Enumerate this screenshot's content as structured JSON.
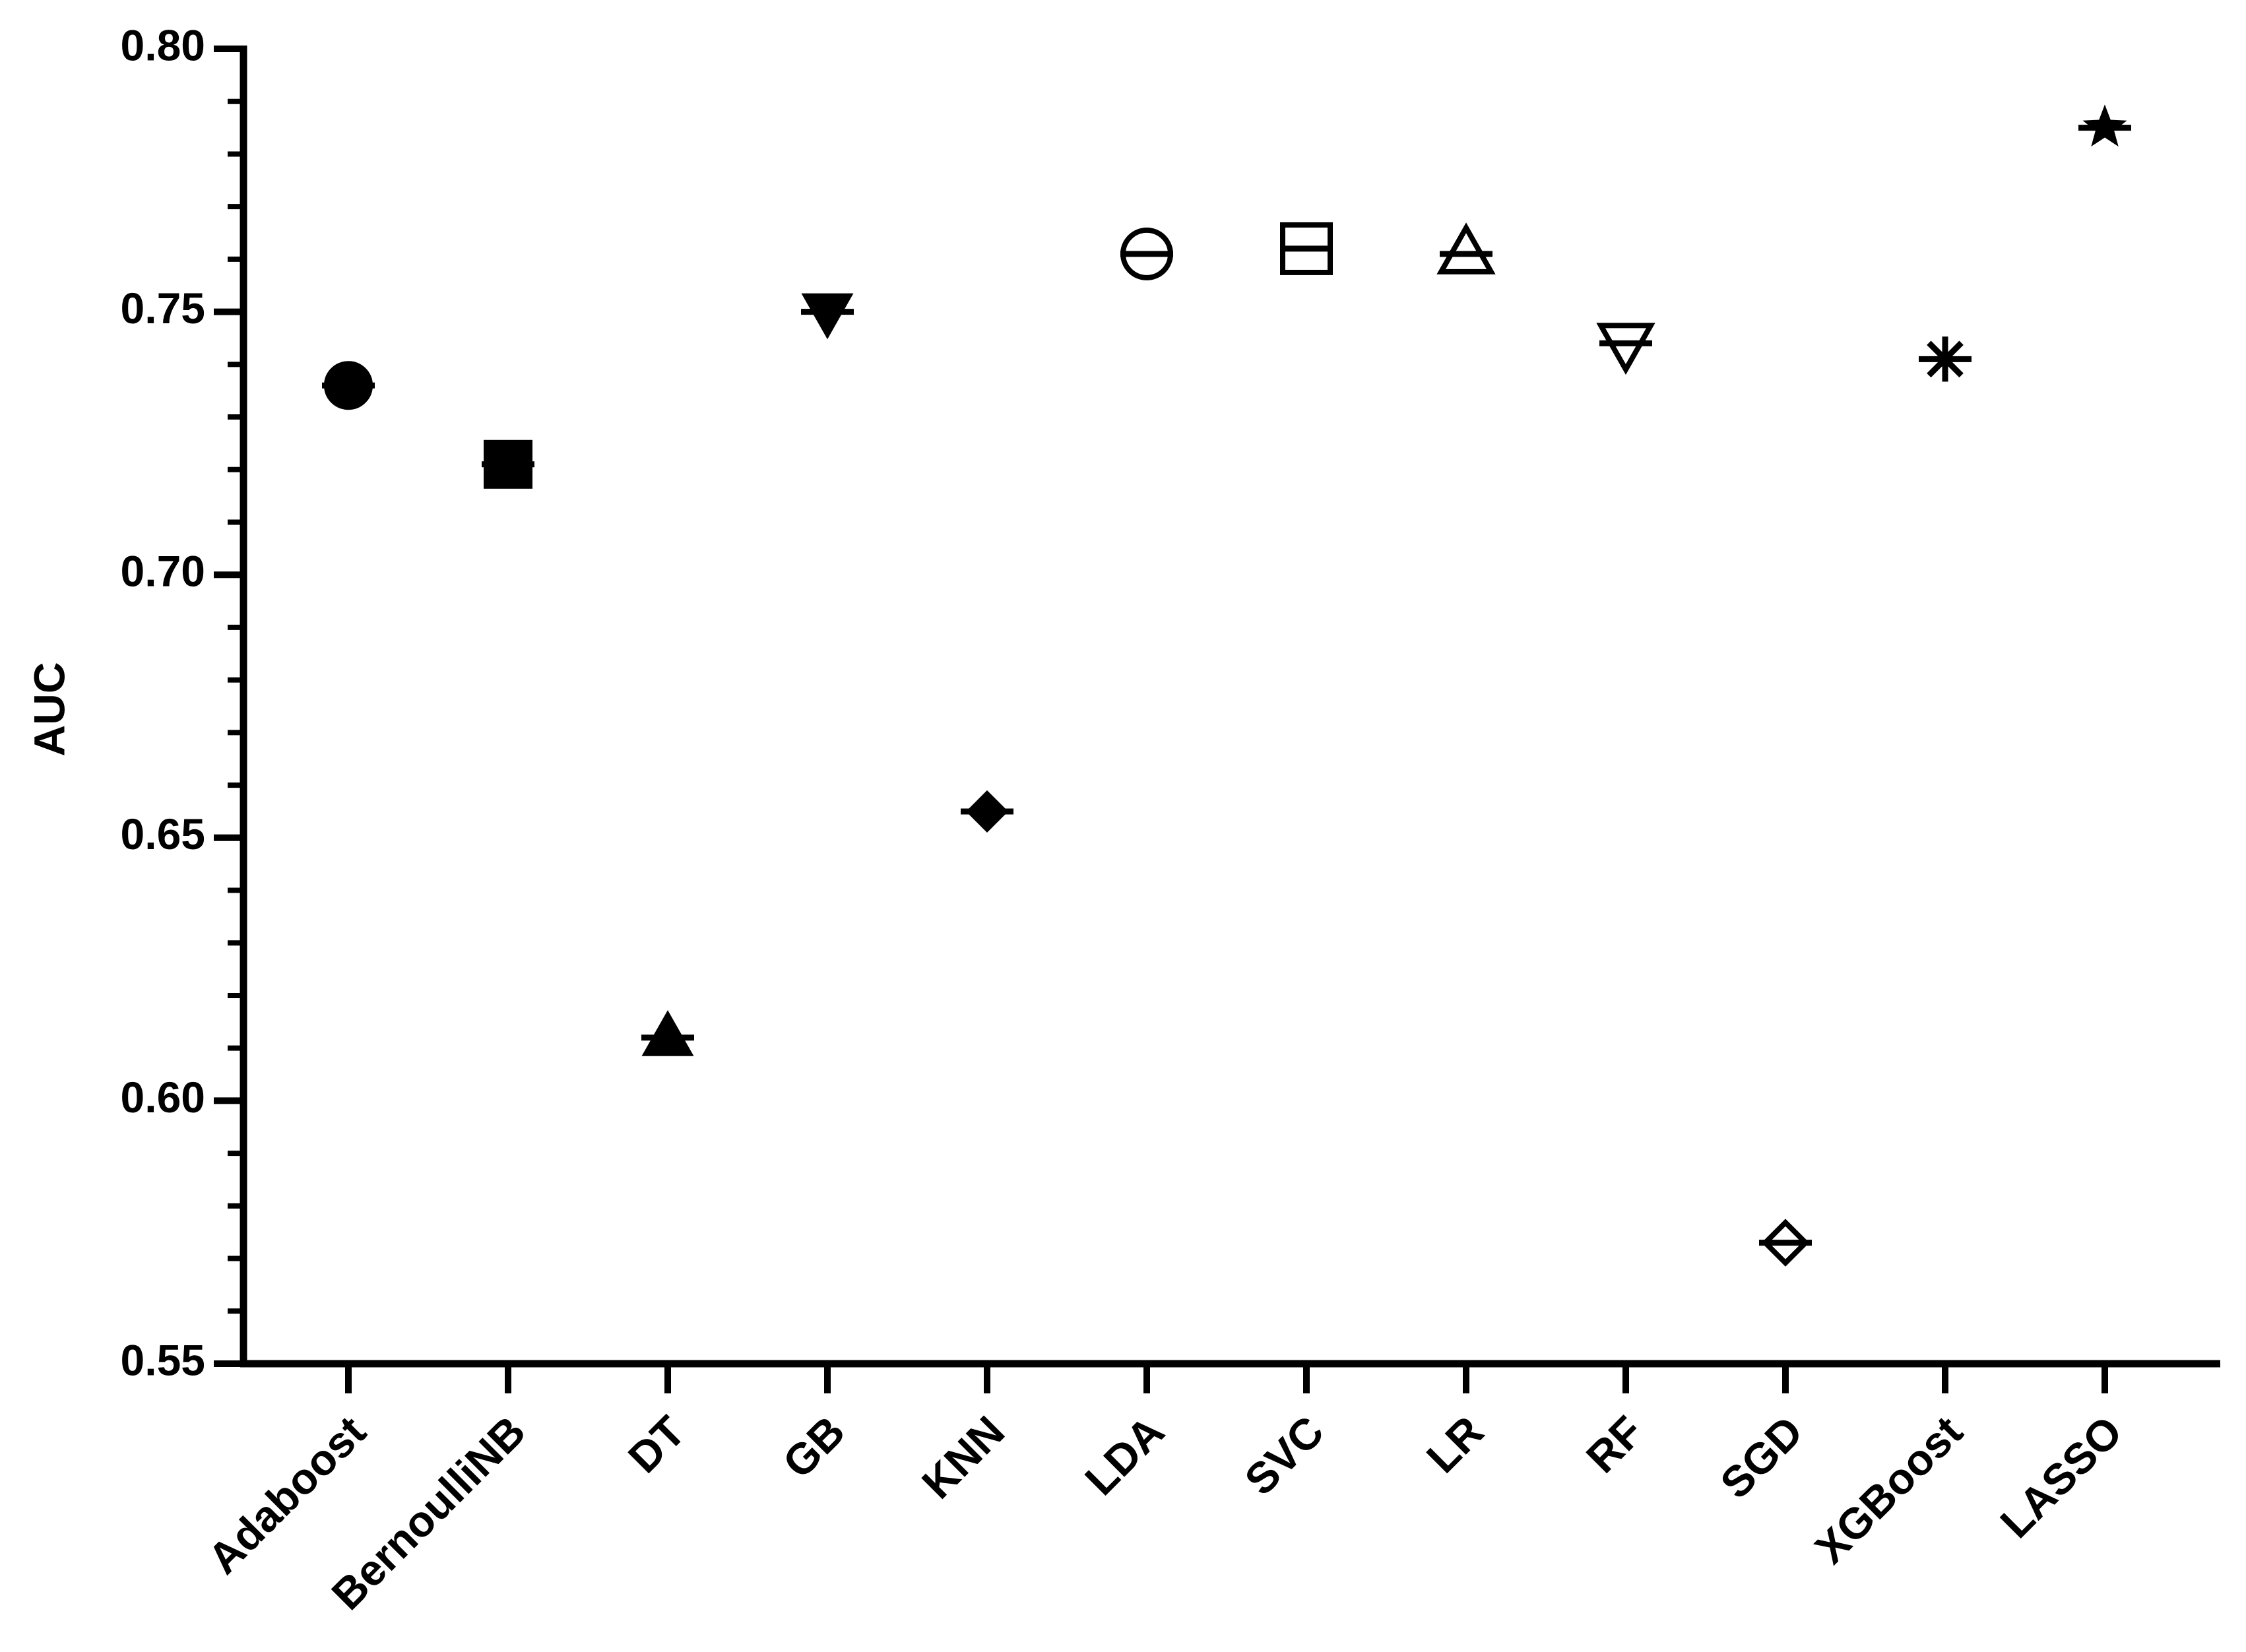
{
  "chart_data": {
    "type": "dot",
    "y_label": "AUC",
    "categories": [
      "Adaboost",
      "BernoulliNB",
      "DT",
      "GB",
      "KNN",
      "LDA",
      "SVC",
      "LR",
      "RF",
      "SGD",
      "XGBoost",
      "LASSO"
    ],
    "values": [
      0.736,
      0.721,
      0.612,
      0.75,
      0.655,
      0.761,
      0.762,
      0.761,
      0.744,
      0.573,
      0.741,
      0.785
    ],
    "markers": [
      "circle",
      "square",
      "triangle",
      "triangle-down",
      "diamond",
      "open-circle",
      "open-square",
      "open-triangle",
      "open-triangle-down",
      "open-diamond",
      "asterisk",
      "star"
    ],
    "color": "#000000",
    "ylim": [
      0.55,
      0.8
    ],
    "yticks": [
      {
        "value": 0.55,
        "label": "0.55"
      },
      {
        "value": 0.6,
        "label": "0.60"
      },
      {
        "value": 0.65,
        "label": "0.65"
      },
      {
        "value": 0.7,
        "label": "0.70"
      },
      {
        "value": 0.75,
        "label": "0.75"
      },
      {
        "value": 0.8,
        "label": "0.80"
      }
    ],
    "minor_yticks": [
      0.56,
      0.57,
      0.58,
      0.59,
      0.61,
      0.62,
      0.63,
      0.64,
      0.66,
      0.67,
      0.68,
      0.69,
      0.71,
      0.72,
      0.73,
      0.74,
      0.76,
      0.77,
      0.78,
      0.79
    ],
    "grid": false
  }
}
